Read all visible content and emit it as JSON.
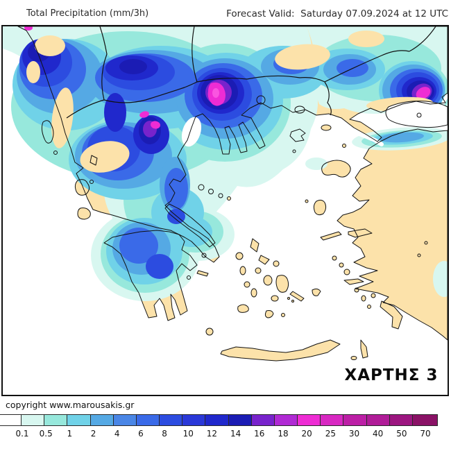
{
  "header": {
    "product": "Total Precipitation (mm/3h)",
    "valid": "Forecast Valid:  Saturday 07.09.2024 at 12 UTC"
  },
  "map": {
    "label": "ΧΑΡΤΗΣ 3",
    "region": "Greece and Aegean",
    "land_color": "#fce2aa",
    "sea_color": "#ffffff",
    "outline_color": "#111111"
  },
  "footer": {
    "copyright": "copyright www.marousakis.gr"
  },
  "scale": {
    "unit": "mm/3h",
    "labels": [
      "0.1",
      "0.5",
      "1",
      "2",
      "4",
      "6",
      "8",
      "10",
      "12",
      "14",
      "16",
      "18",
      "20",
      "25",
      "30",
      "40",
      "50",
      "70"
    ],
    "colors": [
      "#ffffff",
      "#d8f7f0",
      "#97e8dc",
      "#70d2e8",
      "#55a9e4",
      "#4a86e6",
      "#3a6ae8",
      "#2c4ce0",
      "#2a38d8",
      "#2028cc",
      "#1b1cb4",
      "#7823cc",
      "#b02ad4",
      "#ee2cd4",
      "#d828c2",
      "#bc1fa6",
      "#b01c98",
      "#9c1680",
      "#8a1266"
    ]
  }
}
